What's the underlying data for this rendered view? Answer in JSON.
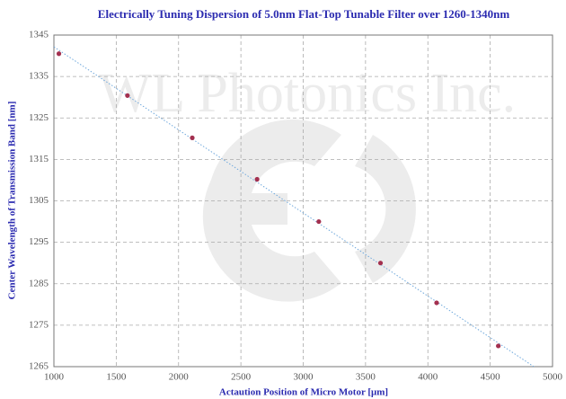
{
  "chart_data": {
    "type": "scatter",
    "title": "Electrically Tuning Dispersion of 5.0nm Flat-Top Tunable Filter over 1260-1340nm",
    "xlabel": "Actaution Position of Micro Motor [μm]",
    "ylabel": "Center Wavelength of Transmission Band [nm]",
    "watermark": "WL Photonics Inc.",
    "x": [
      1040,
      1590,
      2110,
      2630,
      3125,
      3620,
      4070,
      4565
    ],
    "values": [
      1340.5,
      1330.4,
      1320.2,
      1310.2,
      1300.0,
      1290.0,
      1280.4,
      1270.0
    ],
    "color": "#a3304f",
    "trendline_color": "#6fa8dc",
    "xlim": [
      1000,
      5000
    ],
    "ylim": [
      1265,
      1345
    ],
    "xticks": [
      1000,
      1500,
      2000,
      2500,
      3000,
      3500,
      4000,
      4500,
      5000
    ],
    "yticks": [
      1265,
      1275,
      1285,
      1295,
      1305,
      1315,
      1325,
      1335,
      1345
    ],
    "grid": true
  }
}
